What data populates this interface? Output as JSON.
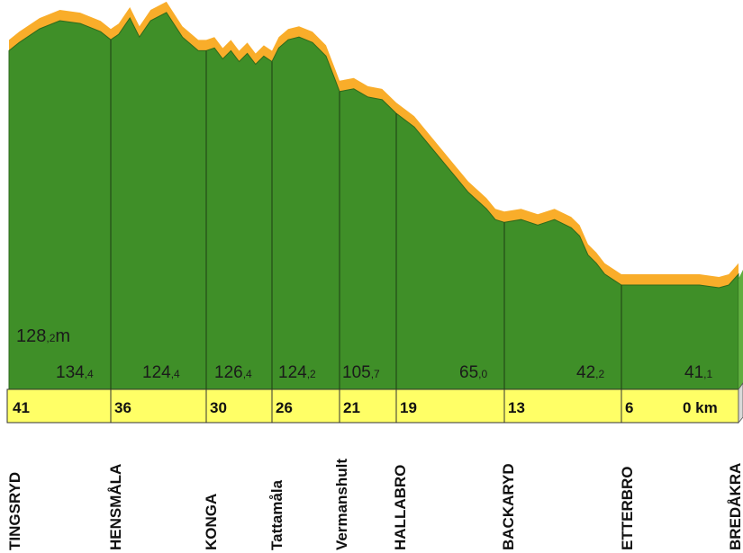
{
  "chart_data": {
    "type": "area",
    "title": "",
    "xlabel": "",
    "ylabel": "",
    "start_elevation": {
      "whole": "128",
      "decimal": ",2",
      "unit": "m"
    },
    "stations": [
      {
        "name": "TINGSRYD",
        "km": "41",
        "km_value": 41,
        "elev_whole": "134",
        "elev_dec": ",4"
      },
      {
        "name": "HENSMÅLA",
        "km": "36",
        "km_value": 36,
        "elev_whole": "124",
        "elev_dec": ",4"
      },
      {
        "name": "KONGA",
        "km": "30",
        "km_value": 30,
        "elev_whole": "126",
        "elev_dec": ",4"
      },
      {
        "name": "Tattamåla",
        "km": "26",
        "km_value": 26,
        "elev_whole": "124",
        "elev_dec": ",2"
      },
      {
        "name": "Vermanshult",
        "km": "21",
        "km_value": 21,
        "elev_whole": "105",
        "elev_dec": ",7"
      },
      {
        "name": "HALLABRO",
        "km": "19",
        "km_value": 19,
        "elev_whole": "",
        "elev_dec": ""
      },
      {
        "name": "BACKARYD",
        "km": "13",
        "km_value": 13,
        "elev_whole": "65",
        "elev_dec": ",0"
      },
      {
        "name": "ETTERBRO",
        "km": "6",
        "km_value": 6,
        "elev_whole": "42",
        "elev_dec": ",2"
      },
      {
        "name": "BREDÅKRA",
        "km": "0 km",
        "km_value": 0,
        "elev_whole": "41",
        "elev_dec": ",1"
      }
    ],
    "profile": [
      [
        41,
        128
      ],
      [
        40.5,
        131
      ],
      [
        39.5,
        136
      ],
      [
        38.5,
        139
      ],
      [
        37.5,
        138
      ],
      [
        36.5,
        135
      ],
      [
        36,
        132
      ],
      [
        35.5,
        134
      ],
      [
        34.8,
        140
      ],
      [
        34.2,
        133
      ],
      [
        33.5,
        139
      ],
      [
        32.5,
        142
      ],
      [
        31.5,
        133
      ],
      [
        30.5,
        128
      ],
      [
        30,
        128
      ],
      [
        29.5,
        129
      ],
      [
        29,
        125
      ],
      [
        28.5,
        128
      ],
      [
        28,
        124
      ],
      [
        27.5,
        127
      ],
      [
        27,
        123
      ],
      [
        26.5,
        126
      ],
      [
        26,
        124
      ],
      [
        25.5,
        129
      ],
      [
        24.8,
        132
      ],
      [
        24,
        133
      ],
      [
        23,
        131
      ],
      [
        22,
        126
      ],
      [
        21.3,
        117
      ],
      [
        21,
        113
      ],
      [
        20.5,
        114
      ],
      [
        20,
        111
      ],
      [
        19.5,
        110
      ],
      [
        19,
        105
      ],
      [
        18,
        100
      ],
      [
        17,
        92
      ],
      [
        16,
        84
      ],
      [
        15,
        76
      ],
      [
        14,
        70
      ],
      [
        13.5,
        66
      ],
      [
        13,
        65
      ],
      [
        12,
        66
      ],
      [
        11,
        64
      ],
      [
        10,
        66
      ],
      [
        9,
        63
      ],
      [
        8.5,
        60
      ],
      [
        8,
        53
      ],
      [
        7.5,
        50
      ],
      [
        7,
        46
      ],
      [
        6.5,
        44
      ],
      [
        6,
        42
      ],
      [
        5,
        42
      ],
      [
        4,
        42
      ],
      [
        3,
        42
      ],
      [
        2,
        42
      ],
      [
        1,
        41
      ],
      [
        0.5,
        42
      ],
      [
        0,
        46
      ]
    ],
    "colors": {
      "terrain": "#3f8f28",
      "ridge": "#f9ad2a",
      "km_band": "#ffff66",
      "side": "#d9d9d9"
    }
  }
}
